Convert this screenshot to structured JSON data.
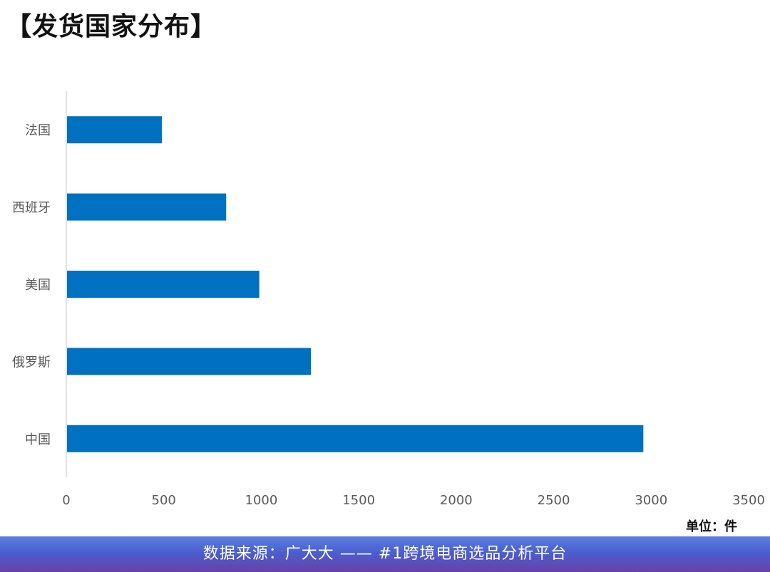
{
  "title": "【发货国家分布】",
  "unit_label": "单位：件",
  "footer_text": "数据来源：广大大 —— #1跨境电商选品分析平台",
  "colors": {
    "bar": "#0070c0",
    "axis": "#d9d9d9",
    "tick_text": "#595959"
  },
  "chart_data": {
    "type": "bar",
    "orientation": "horizontal",
    "categories": [
      "法国",
      "西班牙",
      "美国",
      "俄罗斯",
      "中国"
    ],
    "values": [
      490,
      820,
      990,
      1255,
      2960
    ],
    "xlim": [
      0,
      3500
    ],
    "xticks": [
      0,
      500,
      1000,
      1500,
      2000,
      2500,
      3000,
      3500
    ],
    "grid": false,
    "legend": "none"
  }
}
